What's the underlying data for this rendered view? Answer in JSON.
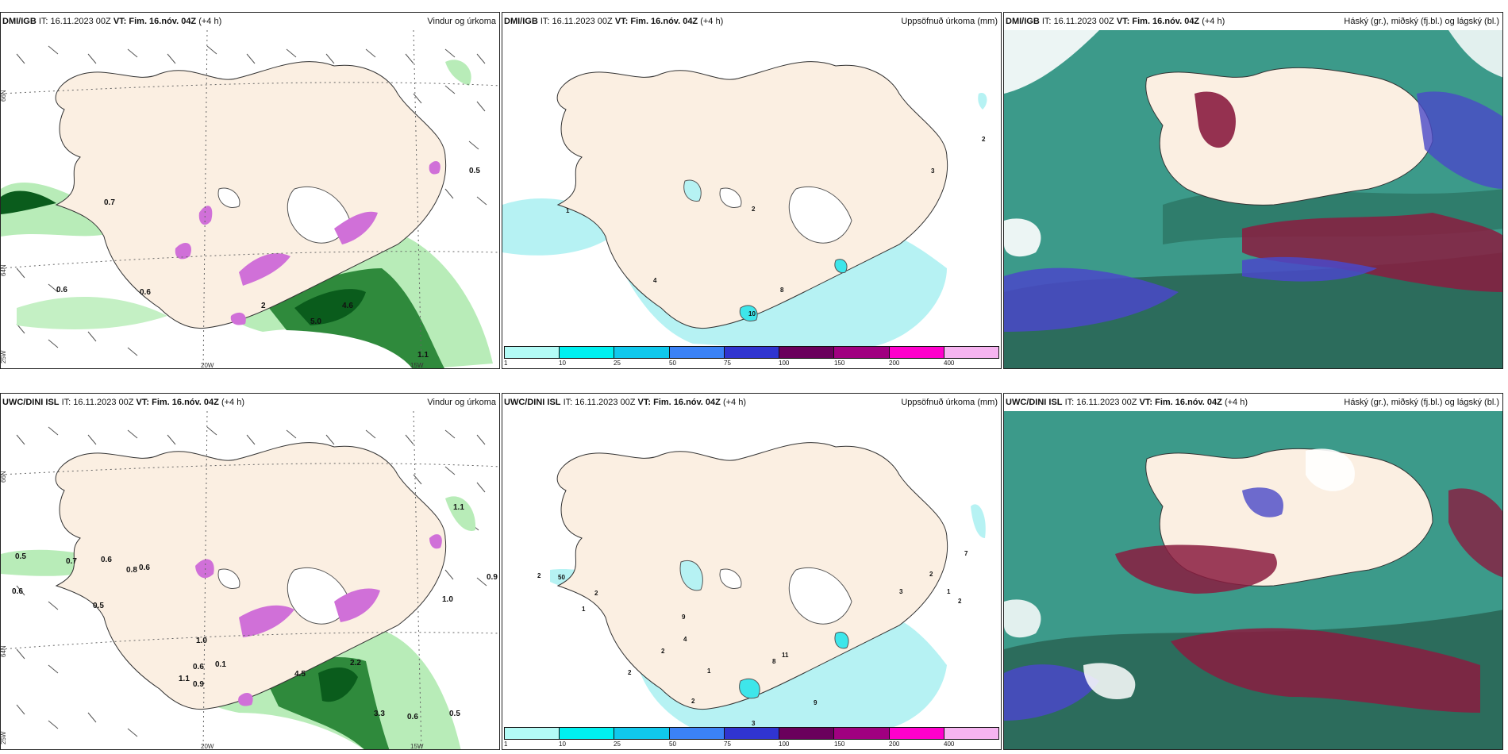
{
  "rows": [
    {
      "model_prefix": "DMI/IGB",
      "panels": [
        {
          "it": "IT: 16.11.2023 00Z",
          "vt_label": "VT: Fim. 16.nóv. 04Z",
          "lead": "(+4 h)",
          "title": "Vindur og úrkoma"
        },
        {
          "it": "IT: 16.11.2023 00Z",
          "vt_label": "VT: Fim. 16.nóv. 04Z",
          "lead": "(+4 h)",
          "title": "Uppsöfnuð úrkoma (mm)"
        },
        {
          "it": "IT: 16.11.2023 00Z",
          "vt_label": "VT: Fim. 16.nóv. 04Z",
          "lead": "(+4 h)",
          "title": "Háský (gr.), miðský (fj.bl.) og lágský (bl.)"
        }
      ],
      "wind_values": [
        "0.5",
        "0.7",
        "0.6",
        "0.6",
        "2",
        "4.6",
        "5.0",
        "1.1"
      ],
      "precip_values": [
        "10",
        "2",
        "3",
        "2",
        "4",
        "8",
        "1"
      ]
    },
    {
      "model_prefix": "UWC/DINI ISL",
      "panels": [
        {
          "it": "IT: 16.11.2023 00Z",
          "vt_label": "VT: Fim. 16.nóv. 04Z",
          "lead": "(+4 h)",
          "title": "Vindur og úrkoma"
        },
        {
          "it": "IT: 16.11.2023 00Z",
          "vt_label": "VT: Fim. 16.nóv. 04Z",
          "lead": "(+4 h)",
          "title": "Uppsöfnuð úrkoma (mm)"
        },
        {
          "it": "IT: 16.11.2023 00Z",
          "vt_label": "VT: Fim. 16.nóv. 04Z",
          "lead": "(+4 h)",
          "title": "Háský (gr.), miðský (fj.bl.) og lágský (bl.)"
        }
      ],
      "wind_values": [
        "0.5",
        "0.7",
        "0.6",
        "0.8",
        "0.6",
        "0.6",
        "0.5",
        "1.0",
        "0.6",
        "0.1",
        "1.1",
        "0.9",
        "2.2",
        "4.5",
        "3.3",
        "0.6",
        "0.5",
        "1.0",
        "0.9",
        "1.1"
      ],
      "precip_values": [
        "2",
        "50",
        "2",
        "1",
        "9",
        "4",
        "2",
        "1",
        "8",
        "11",
        "2",
        "2",
        "3",
        "9",
        "7",
        "2",
        "3",
        "1",
        "2"
      ]
    }
  ],
  "graticule": {
    "lat1": "66N",
    "lat2": "64N",
    "lon1": "20W",
    "lon2": "15W",
    "lon3": "25W"
  },
  "legend": {
    "labels": [
      "1",
      "10",
      "25",
      "50",
      "75",
      "100",
      "150",
      "200",
      "400"
    ],
    "colors": [
      "#b3fbf6",
      "#00f0f0",
      "#10c8ec",
      "#3b82f6",
      "#3034d0",
      "#6a005c",
      "#a00080",
      "#ff00cc",
      "#f6b4f0"
    ]
  },
  "colors": {
    "land": "#fbefe2",
    "precip_light": "#b6f2f3",
    "wind_green_light": "#b8ecb8",
    "wind_green_dark": "#0a5c1c",
    "snow_magenta": "#d070d8",
    "cloud_teal": "#3c9a8a",
    "cloud_dark": "#2c6c5c",
    "cloud_blue": "#4a48c8",
    "cloud_red": "#8a1c40"
  }
}
